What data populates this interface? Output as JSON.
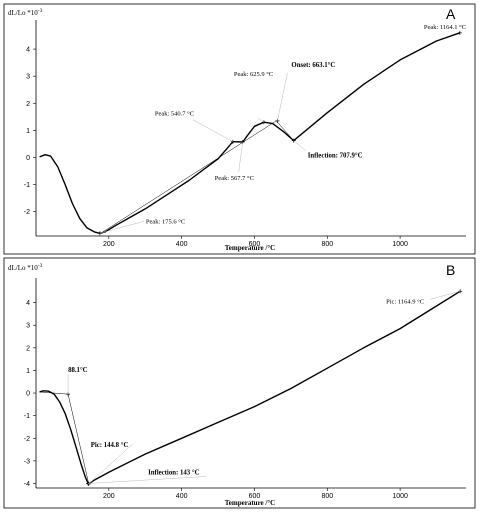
{
  "chart_data": [
    {
      "type": "line",
      "panel_label": "A",
      "ylabel": "dL/Lo *10",
      "ylabel_exponent": "-3",
      "xlabel": "Temperature /°C",
      "xlim": [
        0,
        1170
      ],
      "ylim": [
        -2.9,
        5.0
      ],
      "xticks": [
        200,
        400,
        600,
        800,
        1000
      ],
      "yticks": [
        -2,
        -1,
        0,
        1,
        2,
        3,
        4
      ],
      "series": [
        {
          "x": [
            10,
            25,
            40,
            60,
            80,
            100,
            120,
            140,
            160,
            175.6,
            190,
            220,
            260,
            300,
            340,
            380,
            420,
            460,
            500,
            540.7,
            567.7,
            580,
            600,
            625.9,
            650,
            680,
            707.9,
            800,
            900,
            1000,
            1100,
            1164.1
          ],
          "y": [
            0.02,
            0.1,
            0.05,
            -0.35,
            -1.0,
            -1.7,
            -2.25,
            -2.6,
            -2.75,
            -2.8,
            -2.75,
            -2.5,
            -2.2,
            -1.9,
            -1.55,
            -1.2,
            -0.85,
            -0.45,
            -0.05,
            0.58,
            0.57,
            0.8,
            1.15,
            1.3,
            1.25,
            0.95,
            0.62,
            1.65,
            2.7,
            3.6,
            4.3,
            4.6
          ]
        }
      ],
      "tangents": [
        {
          "x": [
            180,
            660
          ],
          "y": [
            -2.78,
            1.35
          ]
        },
        {
          "x": [
            660,
            707.9
          ],
          "y": [
            1.35,
            0.62
          ]
        }
      ],
      "annotations": [
        {
          "text": "Peak: 1164.1 °C",
          "x": 1164.1,
          "y": 4.6,
          "bold": false
        },
        {
          "text": "Peak: 625.9 °C",
          "x": 625.9,
          "y": 1.3,
          "bold": false
        },
        {
          "text": "Onset: 663.1°C",
          "x": 663.1,
          "y": 1.35,
          "bold": true
        },
        {
          "text": "Peak: 540.7 °C",
          "x": 540.7,
          "y": 0.58,
          "bold": false
        },
        {
          "text": "Inflection: 707.9°C",
          "x": 707.9,
          "y": 0.62,
          "bold": true
        },
        {
          "text": "Peak: 567.7 °C",
          "x": 567.7,
          "y": 0.57,
          "bold": false
        },
        {
          "text": "Peak: 175.6 °C",
          "x": 175.6,
          "y": -2.8,
          "bold": false
        }
      ]
    },
    {
      "type": "line",
      "panel_label": "B",
      "ylabel": "dL/Lo *10",
      "ylabel_exponent": "-3",
      "xlabel": "Temperature /°C",
      "xlim": [
        0,
        1170
      ],
      "ylim": [
        -4.2,
        5.0
      ],
      "xticks": [
        200,
        400,
        600,
        800,
        1000
      ],
      "yticks": [
        -4,
        -3,
        -2,
        -1,
        0,
        1,
        2,
        3,
        4
      ],
      "series": [
        {
          "x": [
            10,
            20,
            35,
            50,
            65,
            80,
            95,
            110,
            125,
            135,
            143,
            144.8,
            160,
            200,
            300,
            400,
            500,
            600,
            700,
            800,
            900,
            1000,
            1100,
            1164.9
          ],
          "y": [
            0.05,
            0.1,
            0.08,
            -0.05,
            -0.4,
            -0.9,
            -1.6,
            -2.4,
            -3.2,
            -3.7,
            -4.0,
            -4.02,
            -3.85,
            -3.5,
            -2.7,
            -2.0,
            -1.3,
            -0.6,
            0.2,
            1.1,
            2.0,
            2.85,
            3.85,
            4.5
          ]
        }
      ],
      "tangents": [
        {
          "x": [
            10,
            88.1
          ],
          "y": [
            0.05,
            -0.05
          ]
        },
        {
          "x": [
            88.1,
            145
          ],
          "y": [
            -0.05,
            -4.02
          ]
        }
      ],
      "annotations": [
        {
          "text": "Pic: 1164.9 °C",
          "x": 1164.9,
          "y": 4.5,
          "bold": false
        },
        {
          "text": "88.1°C",
          "x": 88.1,
          "y": -0.05,
          "bold": true
        },
        {
          "text": "Pic: 144.8 °C",
          "x": 144.8,
          "y": -4.02,
          "bold": true
        },
        {
          "text": "Inflection: 143 °C",
          "x": 143,
          "y": -4.0,
          "bold": true
        }
      ]
    }
  ]
}
